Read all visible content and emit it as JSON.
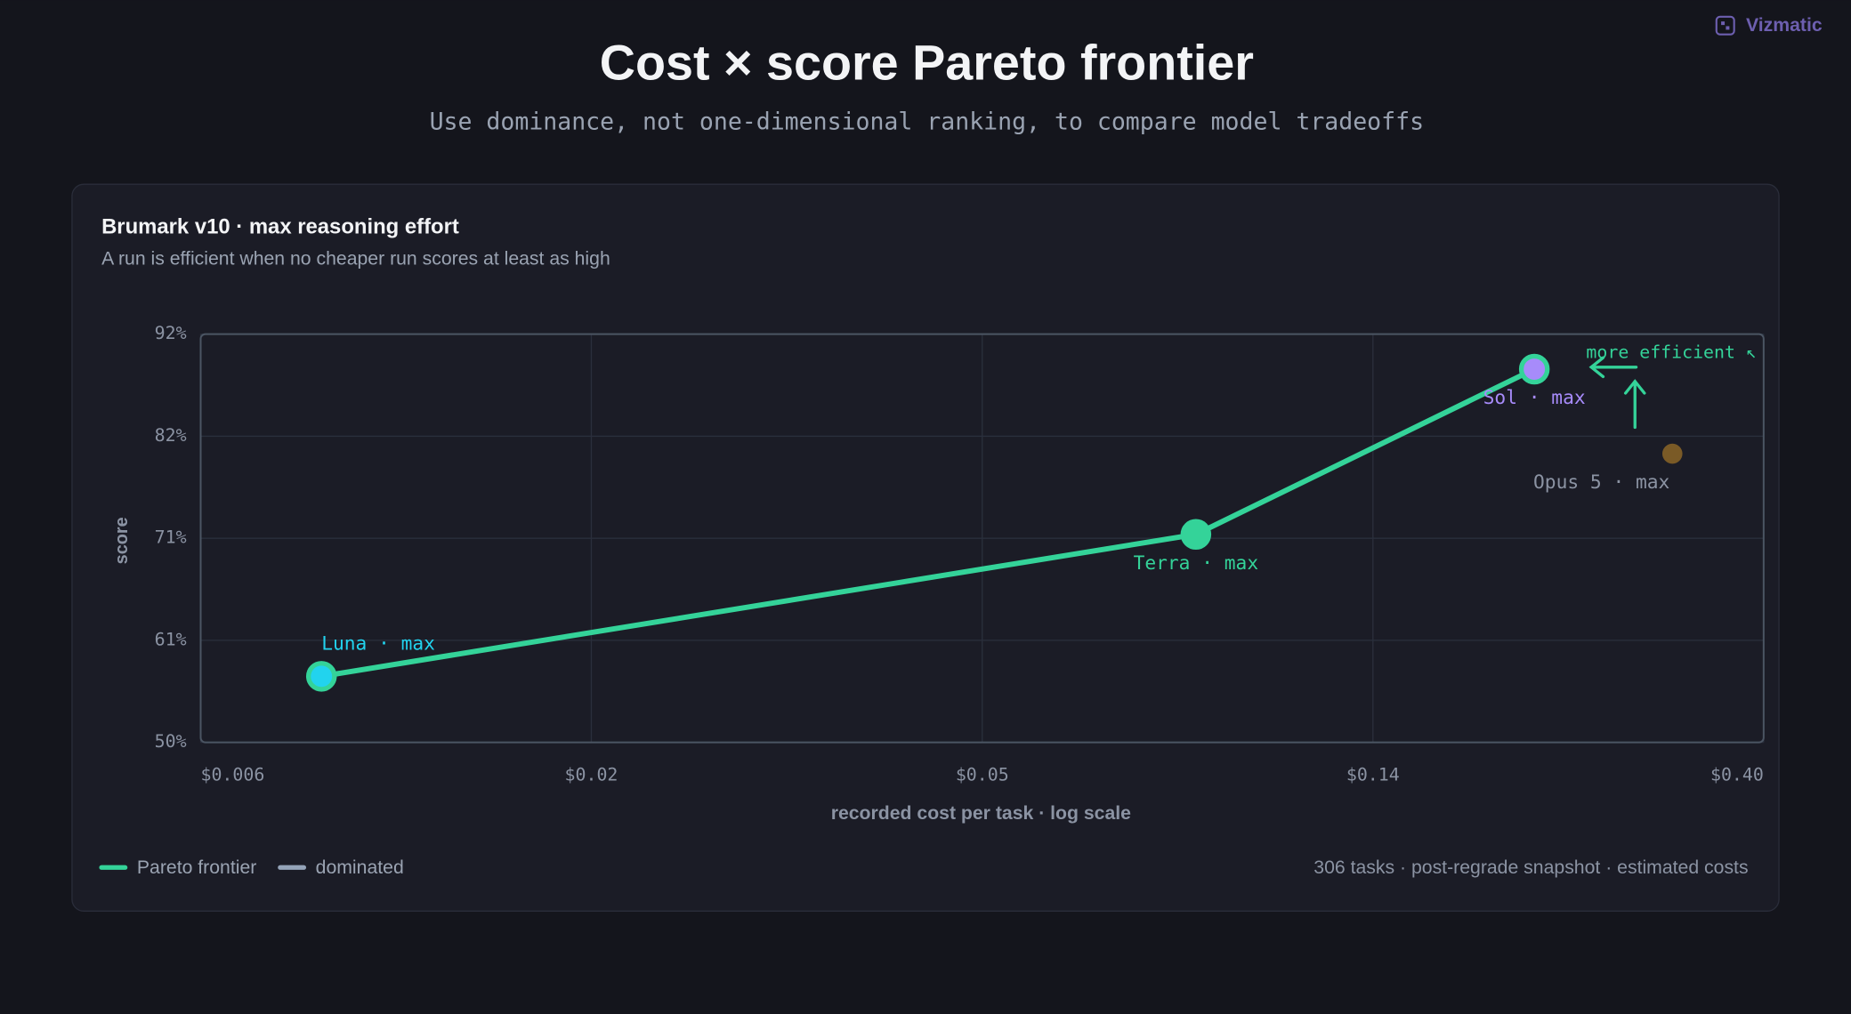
{
  "brand": "Vizmatic",
  "chart_data": {
    "type": "line",
    "title": "Cost × score Pareto frontier",
    "subtitle": "Use dominance, not one-dimensional ranking, to compare model tradeoffs",
    "panel_title": "Brumark v10 · max reasoning effort",
    "panel_subtitle": "A run is efficient when no cheaper run scores at least as high",
    "x_label": "recorded cost per task · log scale",
    "y_label": "score",
    "footnote": "306 tasks · post-regrade snapshot · estimated costs",
    "annotation": "more efficient ↖",
    "xscale": "log",
    "grid": true,
    "xlim": [
      0.006,
      0.4
    ],
    "xticks": [
      {
        "value": 0.006,
        "label": "$0.006"
      },
      {
        "value": 0.01714,
        "label": "$0.02"
      },
      {
        "value": 0.049,
        "label": "$0.05"
      },
      {
        "value": 0.14,
        "label": "$0.14"
      },
      {
        "value": 0.4,
        "label": "$0.40"
      }
    ],
    "ylim": [
      50,
      92
    ],
    "yticks": [
      {
        "value": 50,
        "label": "50%"
      },
      {
        "value": 60.5,
        "label": "61%"
      },
      {
        "value": 71,
        "label": "71%"
      },
      {
        "value": 81.5,
        "label": "82%"
      },
      {
        "value": 92,
        "label": "92%"
      }
    ],
    "series": [
      {
        "name": "Pareto frontier",
        "color": "#34d399",
        "line": true,
        "x": [
          0.0083,
          0.087,
          0.216
        ],
        "values": [
          56.8,
          71.4,
          88.4
        ],
        "labels": [
          "Luna · max",
          "Terra · max",
          "Sol · max"
        ],
        "point_colors": [
          "#22d3ee",
          "#34d399",
          "#a78bfa"
        ]
      },
      {
        "name": "dominated",
        "color": "#94a3b8",
        "line": false,
        "x": [
          0.313
        ],
        "values": [
          79.7
        ],
        "labels": [
          "Opus 5 · max"
        ],
        "point_colors": [
          "#7a5a26"
        ]
      }
    ]
  }
}
